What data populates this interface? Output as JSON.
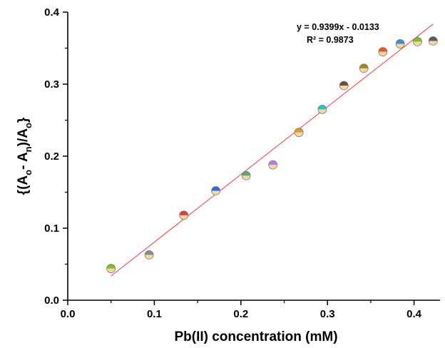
{
  "chart_data": {
    "type": "scatter",
    "xlabel": "Pb(II) concentration (mM)",
    "ylabel": {
      "open": "{(A",
      "sub1": "o",
      "mid": "- A",
      "sub2": "n",
      "mid2": ")/A",
      "sub3": "o",
      "close": "}"
    },
    "xlim": [
      0.0,
      0.43
    ],
    "ylim": [
      0.0,
      0.4
    ],
    "xticks": [
      "0.0",
      "0.1",
      "0.2",
      "0.3",
      "0.4"
    ],
    "yticks": [
      "0.0",
      "0.1",
      "0.2",
      "0.3",
      "0.4"
    ],
    "grid": false,
    "equation": "y = 0.9399x - 0.0133",
    "r_squared": "R² = 0.9873",
    "fit": {
      "slope": 0.9399,
      "intercept": -0.0133,
      "x_range": [
        0.05,
        0.422
      ],
      "color": "#ff3b3b"
    },
    "points": [
      {
        "x": 0.05,
        "y": 0.044,
        "color": "#7fbf1f"
      },
      {
        "x": 0.094,
        "y": 0.063,
        "color": "#8a8a8a"
      },
      {
        "x": 0.134,
        "y": 0.118,
        "color": "#e8393a"
      },
      {
        "x": 0.171,
        "y": 0.152,
        "color": "#2a6fdb"
      },
      {
        "x": 0.206,
        "y": 0.173,
        "color": "#4ab080"
      },
      {
        "x": 0.237,
        "y": 0.188,
        "color": "#b77fe0"
      },
      {
        "x": 0.267,
        "y": 0.233,
        "color": "#e39a2a"
      },
      {
        "x": 0.294,
        "y": 0.265,
        "color": "#23c4cc"
      },
      {
        "x": 0.319,
        "y": 0.298,
        "color": "#6e4a3a"
      },
      {
        "x": 0.342,
        "y": 0.322,
        "color": "#9a8c14"
      },
      {
        "x": 0.364,
        "y": 0.345,
        "color": "#f25a14"
      },
      {
        "x": 0.384,
        "y": 0.356,
        "color": "#3f8fd8"
      },
      {
        "x": 0.404,
        "y": 0.359,
        "color": "#7fbf1f"
      },
      {
        "x": 0.422,
        "y": 0.36,
        "color": "#5a5a5a"
      }
    ],
    "lower_half_color": "#f3d9a0"
  }
}
